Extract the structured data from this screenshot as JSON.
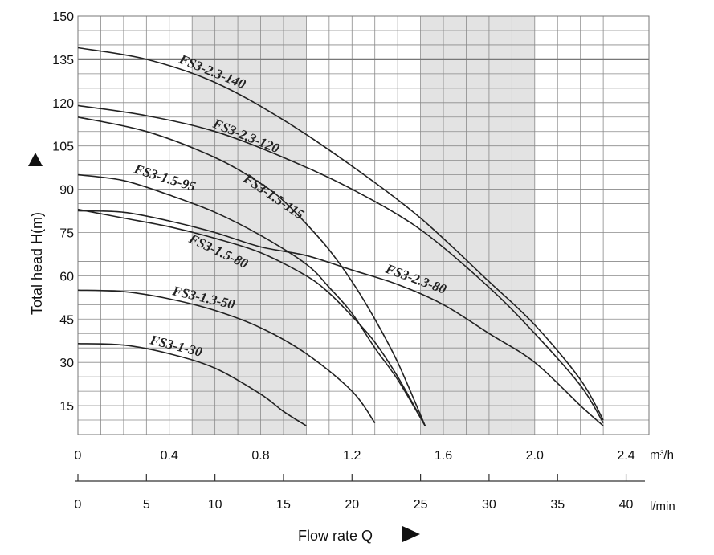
{
  "chart_data": {
    "type": "line",
    "xlabel": "Flow rate Q",
    "ylabel": "Total head H(m)",
    "x_unit": "m³/h",
    "x2_unit": "l/min",
    "xlim": [
      0,
      2.5
    ],
    "ylim": [
      5,
      150
    ],
    "x_ticks": [
      "0",
      "0.4",
      "0.8",
      "1.2",
      "1.6",
      "2.0",
      "2.4"
    ],
    "x2_ticks": [
      "0",
      "5",
      "10",
      "15",
      "20",
      "25",
      "30",
      "35",
      "40"
    ],
    "y_ticks": [
      "15",
      "30",
      "45",
      "60",
      "75",
      "90",
      "105",
      "120",
      "135",
      "150"
    ],
    "reference_line_y": 135,
    "shaded_bands": [
      [
        0.5,
        1.0
      ],
      [
        1.5,
        2.0
      ]
    ],
    "series": [
      {
        "name": "FS3-2.3-140",
        "points": [
          [
            0,
            139
          ],
          [
            0.3,
            135
          ],
          [
            0.6,
            127
          ],
          [
            0.9,
            114
          ],
          [
            1.2,
            98
          ],
          [
            1.5,
            80
          ],
          [
            1.8,
            58
          ],
          [
            2.0,
            43
          ],
          [
            2.2,
            24
          ],
          [
            2.3,
            10
          ]
        ]
      },
      {
        "name": "FS3-2.3-120",
        "points": [
          [
            0,
            119
          ],
          [
            0.3,
            115.5
          ],
          [
            0.6,
            110
          ],
          [
            0.9,
            101
          ],
          [
            1.2,
            90
          ],
          [
            1.5,
            76
          ],
          [
            1.8,
            56
          ],
          [
            2.0,
            40
          ],
          [
            2.2,
            22
          ],
          [
            2.3,
            9
          ]
        ]
      },
      {
        "name": "FS3-1.5-115",
        "points": [
          [
            0,
            115
          ],
          [
            0.3,
            110
          ],
          [
            0.6,
            101
          ],
          [
            0.8,
            92
          ],
          [
            0.9,
            86
          ],
          [
            1.0,
            78
          ],
          [
            1.1,
            69
          ],
          [
            1.2,
            58
          ],
          [
            1.3,
            45
          ],
          [
            1.4,
            30
          ],
          [
            1.52,
            8
          ]
        ]
      },
      {
        "name": "FS3-1.5-95",
        "points": [
          [
            0,
            95
          ],
          [
            0.2,
            93
          ],
          [
            0.4,
            88
          ],
          [
            0.6,
            82
          ],
          [
            0.8,
            74
          ],
          [
            1.0,
            64
          ],
          [
            1.1,
            56
          ],
          [
            1.2,
            47
          ],
          [
            1.3,
            35
          ],
          [
            1.4,
            24
          ],
          [
            1.52,
            8
          ]
        ]
      },
      {
        "name": "FS3-1.5-80",
        "points": [
          [
            0,
            83
          ],
          [
            0.2,
            80
          ],
          [
            0.4,
            77
          ],
          [
            0.6,
            73
          ],
          [
            0.8,
            68
          ],
          [
            1.0,
            60
          ],
          [
            1.1,
            54
          ],
          [
            1.2,
            46
          ],
          [
            1.3,
            37
          ],
          [
            1.4,
            25
          ],
          [
            1.52,
            8
          ]
        ]
      },
      {
        "name": "FS3-2.3-80",
        "points": [
          [
            0,
            82.5
          ],
          [
            0.2,
            82
          ],
          [
            0.4,
            79
          ],
          [
            0.6,
            75
          ],
          [
            0.8,
            70
          ],
          [
            1.0,
            67
          ],
          [
            1.2,
            62
          ],
          [
            1.4,
            57
          ],
          [
            1.6,
            50
          ],
          [
            1.8,
            40
          ],
          [
            2.0,
            30
          ],
          [
            2.2,
            15
          ],
          [
            2.3,
            8
          ]
        ]
      },
      {
        "name": "FS3-1.3-50",
        "points": [
          [
            0,
            55
          ],
          [
            0.2,
            54.5
          ],
          [
            0.4,
            52
          ],
          [
            0.6,
            48
          ],
          [
            0.8,
            42
          ],
          [
            1.0,
            33
          ],
          [
            1.2,
            20
          ],
          [
            1.3,
            9
          ]
        ]
      },
      {
        "name": "FS3-1-30",
        "points": [
          [
            0,
            36.5
          ],
          [
            0.2,
            36
          ],
          [
            0.4,
            33
          ],
          [
            0.6,
            28
          ],
          [
            0.8,
            19
          ],
          [
            0.9,
            13
          ],
          [
            1.0,
            8
          ]
        ]
      }
    ]
  }
}
